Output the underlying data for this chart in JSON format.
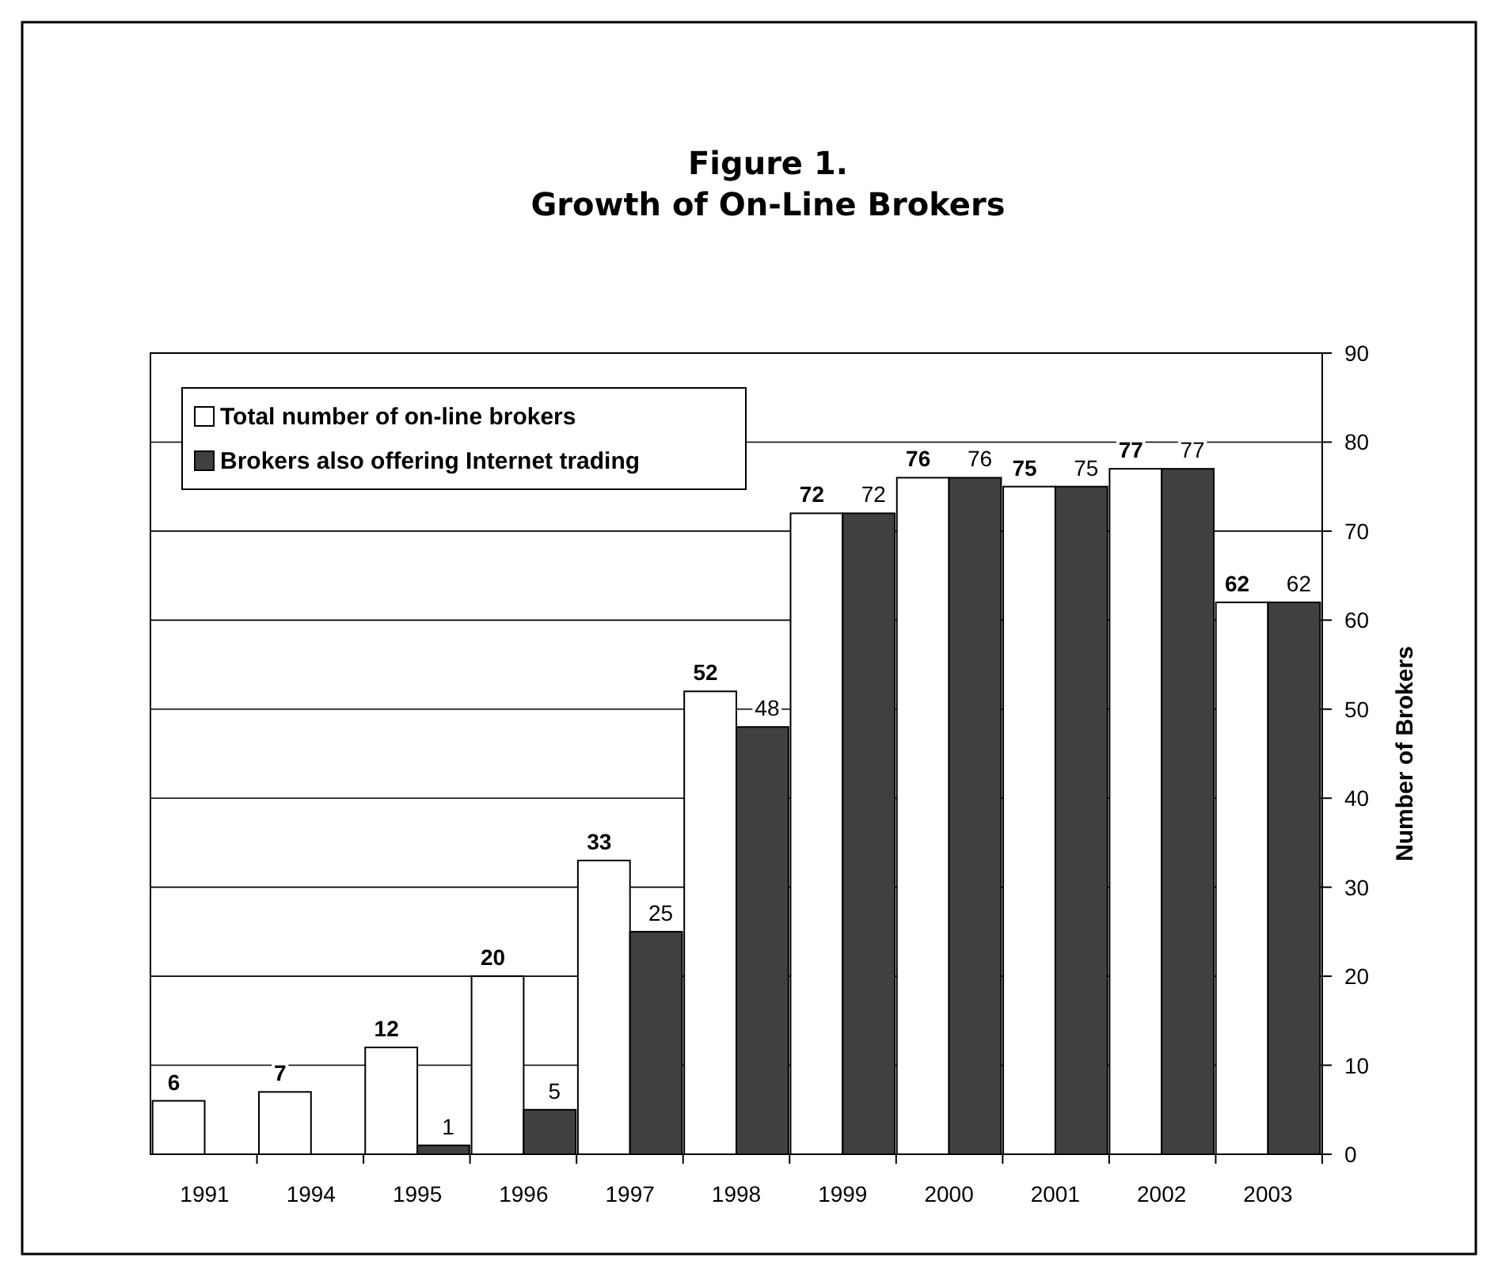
{
  "chart_data": {
    "type": "bar",
    "title": "Figure 1.",
    "subtitle": "Growth of On-Line Brokers",
    "ylabel": "Number of Brokers",
    "categories": [
      "1991",
      "1994",
      "1995",
      "1996",
      "1997",
      "1998",
      "1999",
      "2000",
      "2001",
      "2002",
      "2003"
    ],
    "series": [
      {
        "name": "Total number of on-line brokers",
        "color": "#ffffff",
        "values": [
          6,
          7,
          12,
          20,
          33,
          52,
          72,
          76,
          75,
          77,
          62
        ]
      },
      {
        "name": "Brokers also offering Internet trading",
        "color": "#404040",
        "values": [
          null,
          null,
          1,
          5,
          25,
          48,
          72,
          76,
          75,
          77,
          62
        ]
      }
    ],
    "ylim": [
      0,
      90
    ],
    "yticks": [
      0,
      10,
      20,
      30,
      40,
      50,
      60,
      70,
      80,
      90
    ],
    "grid": "y",
    "legend": "top left",
    "data_labels": true
  }
}
